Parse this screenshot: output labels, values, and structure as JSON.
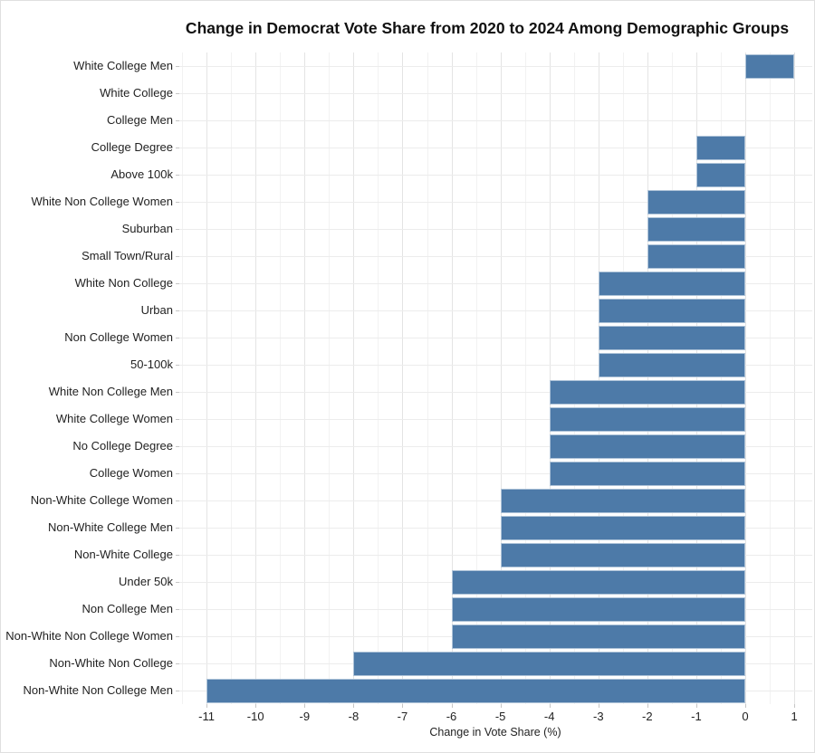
{
  "chart_data": {
    "type": "bar",
    "orientation": "horizontal",
    "title": "Change in Democrat Vote Share from 2020 to 2024 Among Demographic Groups",
    "xlabel": "Change in Vote Share (%)",
    "ylabel": "",
    "categories": [
      "White College Men",
      "White College",
      "College Men",
      "College Degree",
      "Above 100k",
      "White Non College Women",
      "Suburban",
      "Small Town/Rural",
      "White Non College",
      "Urban",
      "Non College Women",
      "50-100k",
      "White Non College Men",
      "White College Women",
      "No College Degree",
      "College Women",
      "Non-White College Women",
      "Non-White College Men",
      "Non-White College",
      "Under 50k",
      "Non College Men",
      "Non-White Non College Women",
      "Non-White Non College",
      "Non-White Non College Men"
    ],
    "values": [
      1,
      0,
      0,
      -1,
      -1,
      -2,
      -2,
      -2,
      -3,
      -3,
      -3,
      -3,
      -4,
      -4,
      -4,
      -4,
      -5,
      -5,
      -5,
      -6,
      -6,
      -6,
      -8,
      -11
    ],
    "x_ticks": [
      -11,
      -10,
      -9,
      -8,
      -7,
      -6,
      -5,
      -4,
      -3,
      -2,
      -1,
      0,
      1
    ],
    "xlim": [
      -11.6,
      1.4
    ],
    "grid": true,
    "legend": false,
    "bar_color": "#4d7aa8",
    "background_color": "#ffffff",
    "gridline_major_color": "#e4e4e4",
    "gridline_minor_color": "#f2f2f2",
    "text_color": "#222222"
  }
}
